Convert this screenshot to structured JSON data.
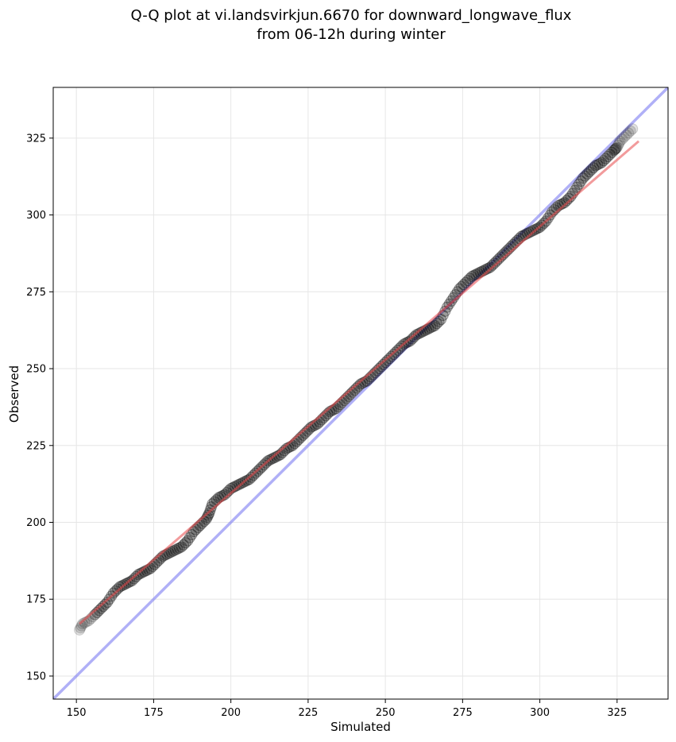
{
  "chart_data": {
    "type": "scatter",
    "title_lines": [
      "Q-Q plot at vi.landsvirkjun.6670 for downward_longwave_flux",
      "from 06-12h during winter"
    ],
    "xlabel": "Simulated",
    "ylabel": "Observed",
    "xlim": [
      142.5,
      341.5
    ],
    "ylim": [
      142.5,
      341.5
    ],
    "xticks": [
      150,
      175,
      200,
      225,
      250,
      275,
      300,
      325
    ],
    "yticks": [
      150,
      175,
      200,
      225,
      250,
      275,
      300,
      325
    ],
    "grid": true,
    "colors": {
      "points": "#000000",
      "fit_line": "#e8484a",
      "identity_line": "#7b7bf2",
      "grid": "#e6e6e6"
    },
    "identity_line": {
      "slope": 1,
      "intercept": 0
    },
    "fit_line": {
      "x": [
        151,
        332
      ],
      "y": [
        167,
        324
      ]
    },
    "quantile_curve": {
      "x": [
        151,
        152,
        154,
        156,
        158,
        160,
        162,
        164,
        166,
        168,
        170,
        172,
        174,
        176,
        178,
        180,
        182,
        184,
        186,
        188,
        190,
        192,
        193,
        194,
        196,
        198,
        200,
        202,
        204,
        206,
        208,
        210,
        212,
        214,
        216,
        218,
        220,
        222,
        224,
        226,
        228,
        230,
        232,
        234,
        236,
        238,
        240,
        242,
        244,
        246,
        248,
        250,
        252,
        254,
        256,
        258,
        260,
        262,
        264,
        266,
        268,
        270,
        272,
        274,
        276,
        278,
        280,
        282,
        284,
        286,
        288,
        290,
        292,
        294,
        296,
        298,
        300,
        302,
        304,
        306,
        308,
        310,
        312,
        314,
        316,
        318,
        320,
        322,
        324,
        325,
        326,
        328,
        330
      ],
      "y": [
        165,
        167,
        168,
        170,
        172,
        174,
        177,
        179,
        180,
        181,
        183,
        184,
        185,
        187,
        189,
        190,
        191,
        192,
        194,
        197,
        199,
        201,
        203,
        206,
        208,
        209,
        211,
        212,
        213,
        214,
        216,
        218,
        220,
        221,
        222,
        224,
        225,
        227,
        229,
        231,
        232,
        234,
        236,
        237,
        239,
        241,
        243,
        245,
        246,
        248,
        250,
        252,
        254,
        256,
        258,
        259,
        261,
        262,
        263,
        264,
        266,
        270,
        273,
        276,
        278,
        280,
        281,
        282,
        283,
        285,
        287,
        289,
        291,
        293,
        294,
        295,
        296,
        298,
        301,
        303,
        304,
        306,
        309,
        312,
        314,
        316,
        317,
        319,
        321,
        322,
        324,
        326,
        328
      ]
    }
  }
}
